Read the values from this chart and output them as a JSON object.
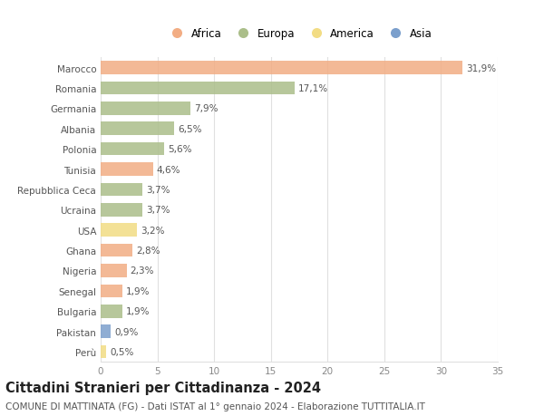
{
  "countries": [
    "Marocco",
    "Romania",
    "Germania",
    "Albania",
    "Polonia",
    "Tunisia",
    "Repubblica Ceca",
    "Ucraina",
    "USA",
    "Ghana",
    "Nigeria",
    "Senegal",
    "Bulgaria",
    "Pakistan",
    "Perù"
  ],
  "values": [
    31.9,
    17.1,
    7.9,
    6.5,
    5.6,
    4.6,
    3.7,
    3.7,
    3.2,
    2.8,
    2.3,
    1.9,
    1.9,
    0.9,
    0.5
  ],
  "labels": [
    "31,9%",
    "17,1%",
    "7,9%",
    "6,5%",
    "5,6%",
    "4,6%",
    "3,7%",
    "3,7%",
    "3,2%",
    "2,8%",
    "2,3%",
    "1,9%",
    "1,9%",
    "0,9%",
    "0,5%"
  ],
  "continents": [
    "Africa",
    "Europa",
    "Europa",
    "Europa",
    "Europa",
    "Africa",
    "Europa",
    "Europa",
    "America",
    "Africa",
    "Africa",
    "Africa",
    "Europa",
    "Asia",
    "America"
  ],
  "colors": {
    "Africa": "#F2AD84",
    "Europa": "#ABBE8A",
    "America": "#F2DC84",
    "Asia": "#7B9FCC"
  },
  "xlim": [
    0,
    35
  ],
  "xticks": [
    0,
    5,
    10,
    15,
    20,
    25,
    30,
    35
  ],
  "title": "Cittadini Stranieri per Cittadinanza - 2024",
  "subtitle": "COMUNE DI MATTINATA (FG) - Dati ISTAT al 1° gennaio 2024 - Elaborazione TUTTITALIA.IT",
  "background_color": "#ffffff",
  "grid_color": "#e0e0e0",
  "bar_height": 0.65,
  "title_fontsize": 10.5,
  "subtitle_fontsize": 7.5,
  "label_fontsize": 7.5,
  "tick_fontsize": 7.5,
  "legend_fontsize": 8.5
}
